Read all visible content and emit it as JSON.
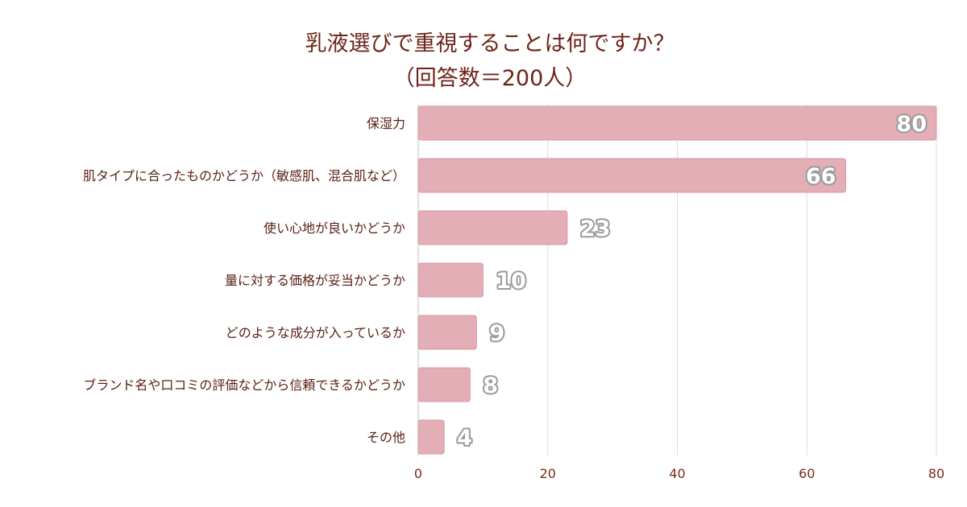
{
  "chart_data": {
    "type": "bar",
    "orientation": "horizontal",
    "title_line1": "乳液選びで重視することは何ですか？",
    "title_line2": "（回答数＝200人）",
    "categories": [
      "保湿力",
      "肌タイプに合ったものかどうか（敏感肌、混合肌など）",
      "使い心地が良いかどうか",
      "量に対する価格が妥当かどうか",
      "どのような成分が入っているか",
      "ブランド名や口コミの評価などから信頼できるかどうか",
      "その他"
    ],
    "values": [
      80,
      66,
      23,
      10,
      9,
      8,
      4
    ],
    "xlim": [
      0,
      80
    ],
    "xticks": [
      0,
      20,
      40,
      60,
      80
    ],
    "grid": true,
    "colors": {
      "bar": "#e3aeb6",
      "bar_edge": "#d69aa3",
      "title": "#6e2418",
      "text": "#5a2116"
    }
  }
}
